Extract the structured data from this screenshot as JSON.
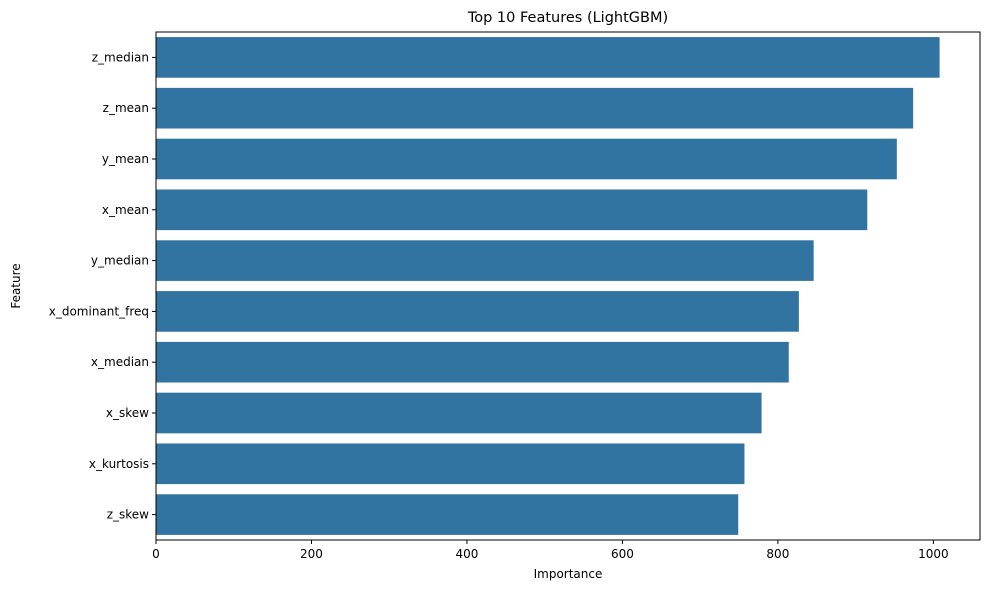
{
  "chart_data": {
    "type": "bar",
    "orientation": "horizontal",
    "title": "Top 10 Features (LightGBM)",
    "xlabel": "Importance",
    "ylabel": "Feature",
    "categories": [
      "z_median",
      "z_mean",
      "y_mean",
      "x_mean",
      "y_median",
      "x_dominant_freq",
      "x_median",
      "x_skew",
      "x_kurtosis",
      "z_skew"
    ],
    "values": [
      1008,
      974,
      953,
      915,
      846,
      827,
      814,
      779,
      757,
      749
    ],
    "xlim": [
      0,
      1060
    ],
    "xticks": [
      0,
      200,
      400,
      600,
      800,
      1000
    ],
    "grid": false,
    "legend": false,
    "bar_color": "#3274a1"
  }
}
